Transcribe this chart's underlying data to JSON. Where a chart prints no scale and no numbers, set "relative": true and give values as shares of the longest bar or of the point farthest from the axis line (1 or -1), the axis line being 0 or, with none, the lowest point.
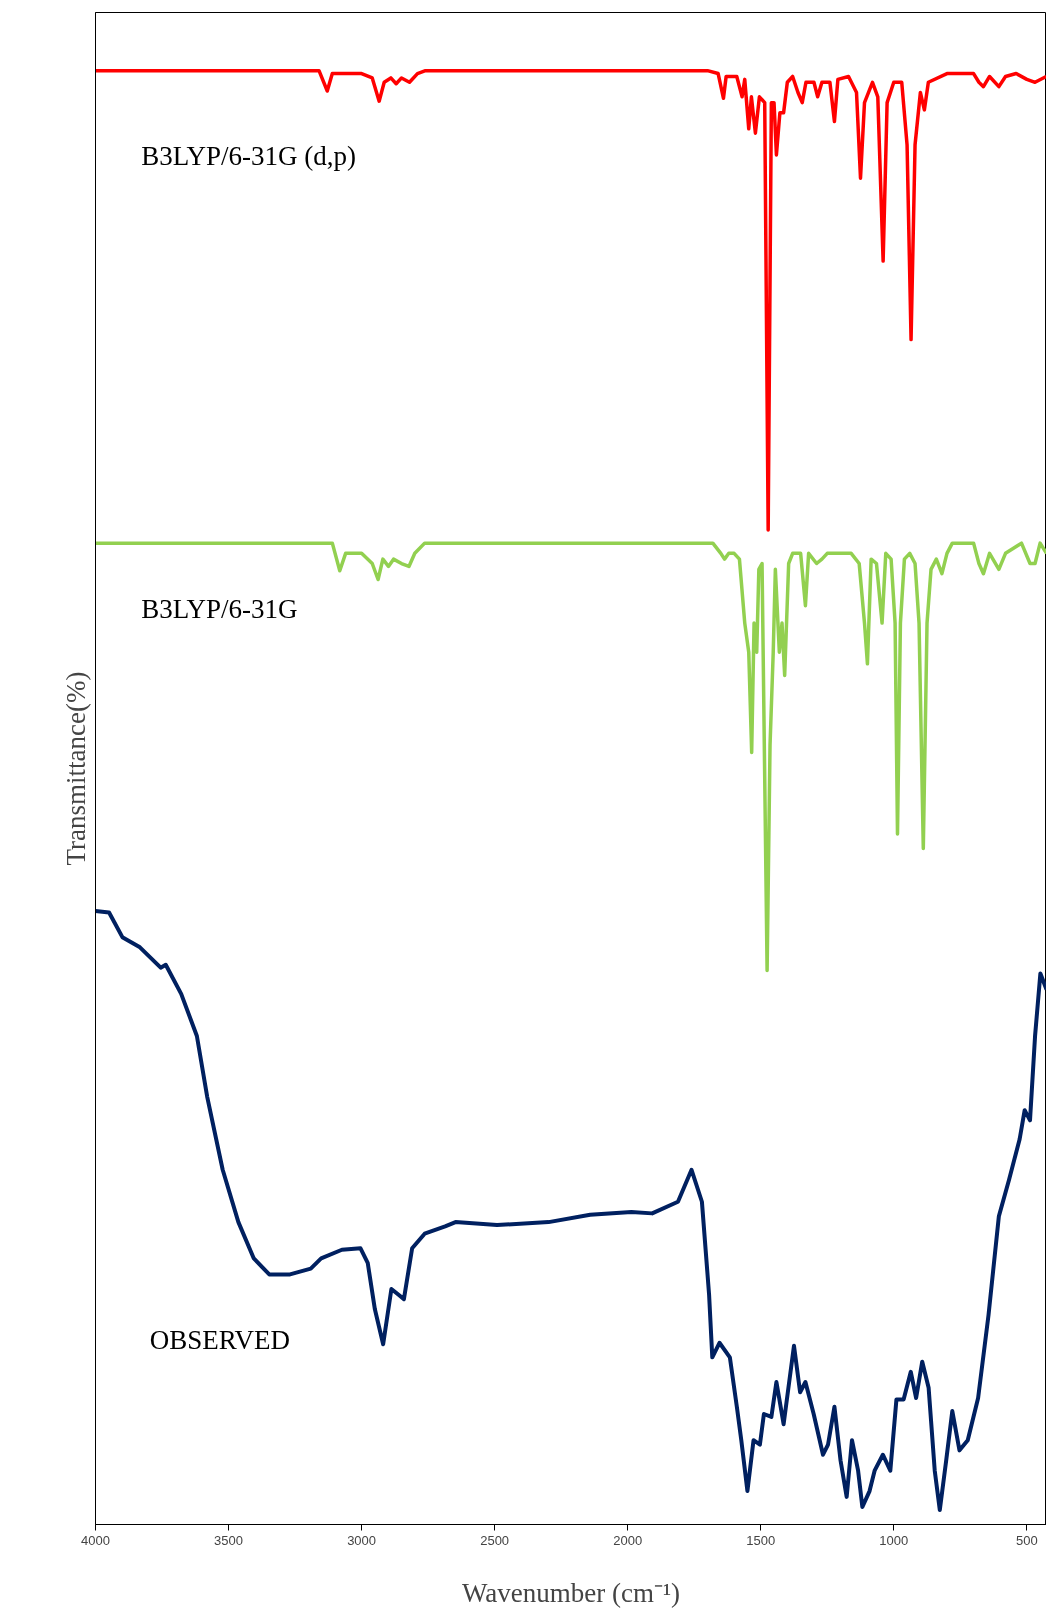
{
  "chart_data": {
    "type": "line",
    "relative": true,
    "xlabel": "Wavenumber (cm⁻¹)",
    "ylabel": "Transmittance(%)",
    "xlim": [
      4000,
      426
    ],
    "xticks": [
      4000,
      3500,
      3000,
      2500,
      2000,
      1500,
      1000,
      500
    ],
    "tick_labels": "x",
    "grid": false,
    "marker": "none",
    "line_style": "solid",
    "series": [
      {
        "name": "B3LYP/6-31G (d,p)",
        "color": "#ff0000",
        "x": [
          4000,
          3160,
          3129,
          3110,
          3000,
          2960,
          2934,
          2915,
          2890,
          2870,
          2850,
          2820,
          2790,
          2760,
          1700,
          1660,
          1640,
          1630,
          1590,
          1570,
          1560,
          1545,
          1535,
          1520,
          1505,
          1485,
          1472,
          1460,
          1450,
          1441,
          1428,
          1414,
          1400,
          1380,
          1360,
          1344,
          1330,
          1300,
          1286,
          1270,
          1240,
          1223,
          1210,
          1170,
          1140,
          1125,
          1110,
          1080,
          1060,
          1040,
          1025,
          1000,
          970,
          950,
          935,
          920,
          900,
          885,
          870,
          800,
          700,
          680,
          663,
          640,
          605,
          580,
          540,
          500,
          469,
          427
        ],
        "values": [
          1.0,
          1.0,
          0.986,
          0.998,
          0.998,
          0.995,
          0.979,
          0.992,
          0.995,
          0.991,
          0.995,
          0.992,
          0.998,
          1.0,
          1.0,
          0.998,
          0.981,
          0.996,
          0.996,
          0.982,
          0.994,
          0.96,
          0.982,
          0.957,
          0.982,
          0.978,
          0.684,
          0.978,
          0.978,
          0.942,
          0.971,
          0.971,
          0.992,
          0.996,
          0.985,
          0.978,
          0.992,
          0.992,
          0.982,
          0.992,
          0.992,
          0.965,
          0.994,
          0.996,
          0.985,
          0.926,
          0.978,
          0.992,
          0.982,
          0.869,
          0.978,
          0.992,
          0.992,
          0.949,
          0.815,
          0.949,
          0.985,
          0.973,
          0.992,
          0.998,
          0.998,
          0.992,
          0.989,
          0.996,
          0.989,
          0.996,
          0.998,
          0.994,
          0.992,
          0.996
        ]
      },
      {
        "name": "B3LYP/6-31G",
        "color": "#92d050",
        "x": [
          4000,
          3110,
          3082,
          3060,
          3000,
          2960,
          2938,
          2920,
          2899,
          2880,
          2850,
          2822,
          2800,
          2763,
          1680,
          1650,
          1636,
          1620,
          1600,
          1580,
          1560,
          1545,
          1534,
          1525,
          1515,
          1507,
          1495,
          1476,
          1465,
          1453,
          1445,
          1430,
          1420,
          1410,
          1395,
          1380,
          1350,
          1332,
          1320,
          1290,
          1270,
          1250,
          1200,
          1160,
          1130,
          1110,
          1099,
          1085,
          1065,
          1044,
          1030,
          1010,
          995,
          986,
          975,
          960,
          940,
          920,
          905,
          889,
          875,
          860,
          840,
          819,
          800,
          780,
          700,
          680,
          663,
          640,
          605,
          580,
          520,
          488,
          469,
          450,
          426
        ],
        "values": [
          0.675,
          0.675,
          0.656,
          0.668,
          0.668,
          0.661,
          0.65,
          0.664,
          0.659,
          0.664,
          0.661,
          0.659,
          0.668,
          0.675,
          0.675,
          0.668,
          0.664,
          0.668,
          0.668,
          0.664,
          0.62,
          0.6,
          0.531,
          0.62,
          0.6,
          0.657,
          0.661,
          0.381,
          0.536,
          0.6,
          0.657,
          0.6,
          0.62,
          0.584,
          0.661,
          0.668,
          0.668,
          0.632,
          0.668,
          0.661,
          0.664,
          0.668,
          0.668,
          0.668,
          0.661,
          0.62,
          0.592,
          0.664,
          0.661,
          0.62,
          0.668,
          0.664,
          0.62,
          0.475,
          0.62,
          0.664,
          0.668,
          0.661,
          0.62,
          0.465,
          0.62,
          0.657,
          0.664,
          0.654,
          0.668,
          0.675,
          0.675,
          0.661,
          0.654,
          0.668,
          0.657,
          0.668,
          0.675,
          0.661,
          0.661,
          0.675,
          0.668
        ]
      },
      {
        "name": "OBSERVED",
        "color": "#002060",
        "x": [
          4000,
          3949,
          3899,
          3833,
          3755,
          3736,
          3678,
          3619,
          3580,
          3522,
          3463,
          3405,
          3347,
          3269,
          3191,
          3152,
          3074,
          3004,
          2977,
          2950,
          2919,
          2888,
          2861,
          2841,
          2810,
          2763,
          2686,
          2647,
          2491,
          2297,
          2141,
          1986,
          1908,
          1811,
          1760,
          1721,
          1694,
          1682,
          1655,
          1616,
          1589,
          1573,
          1550,
          1527,
          1503,
          1488,
          1460,
          1441,
          1414,
          1375,
          1352,
          1332,
          1301,
          1266,
          1247,
          1223,
          1200,
          1177,
          1157,
          1134,
          1118,
          1091,
          1072,
          1041,
          1013,
          990,
          963,
          936,
          916,
          893,
          869,
          846,
          827,
          803,
          780,
          753,
          722,
          683,
          644,
          605,
          567,
          527,
          508,
          488,
          469,
          449,
          426
        ],
        "values": [
          0.422,
          0.421,
          0.404,
          0.397,
          0.383,
          0.385,
          0.365,
          0.336,
          0.294,
          0.244,
          0.208,
          0.183,
          0.172,
          0.172,
          0.176,
          0.183,
          0.189,
          0.19,
          0.18,
          0.148,
          0.124,
          0.162,
          0.158,
          0.155,
          0.19,
          0.2,
          0.205,
          0.208,
          0.206,
          0.208,
          0.213,
          0.215,
          0.214,
          0.222,
          0.244,
          0.222,
          0.158,
          0.115,
          0.125,
          0.115,
          0.08,
          0.058,
          0.023,
          0.058,
          0.055,
          0.076,
          0.074,
          0.098,
          0.069,
          0.123,
          0.091,
          0.098,
          0.076,
          0.048,
          0.055,
          0.081,
          0.044,
          0.019,
          0.058,
          0.037,
          0.012,
          0.023,
          0.037,
          0.048,
          0.037,
          0.086,
          0.086,
          0.105,
          0.087,
          0.112,
          0.094,
          0.037,
          0.01,
          0.044,
          0.078,
          0.051,
          0.058,
          0.087,
          0.144,
          0.212,
          0.237,
          0.265,
          0.285,
          0.278,
          0.336,
          0.379,
          0.368
        ]
      }
    ]
  }
}
